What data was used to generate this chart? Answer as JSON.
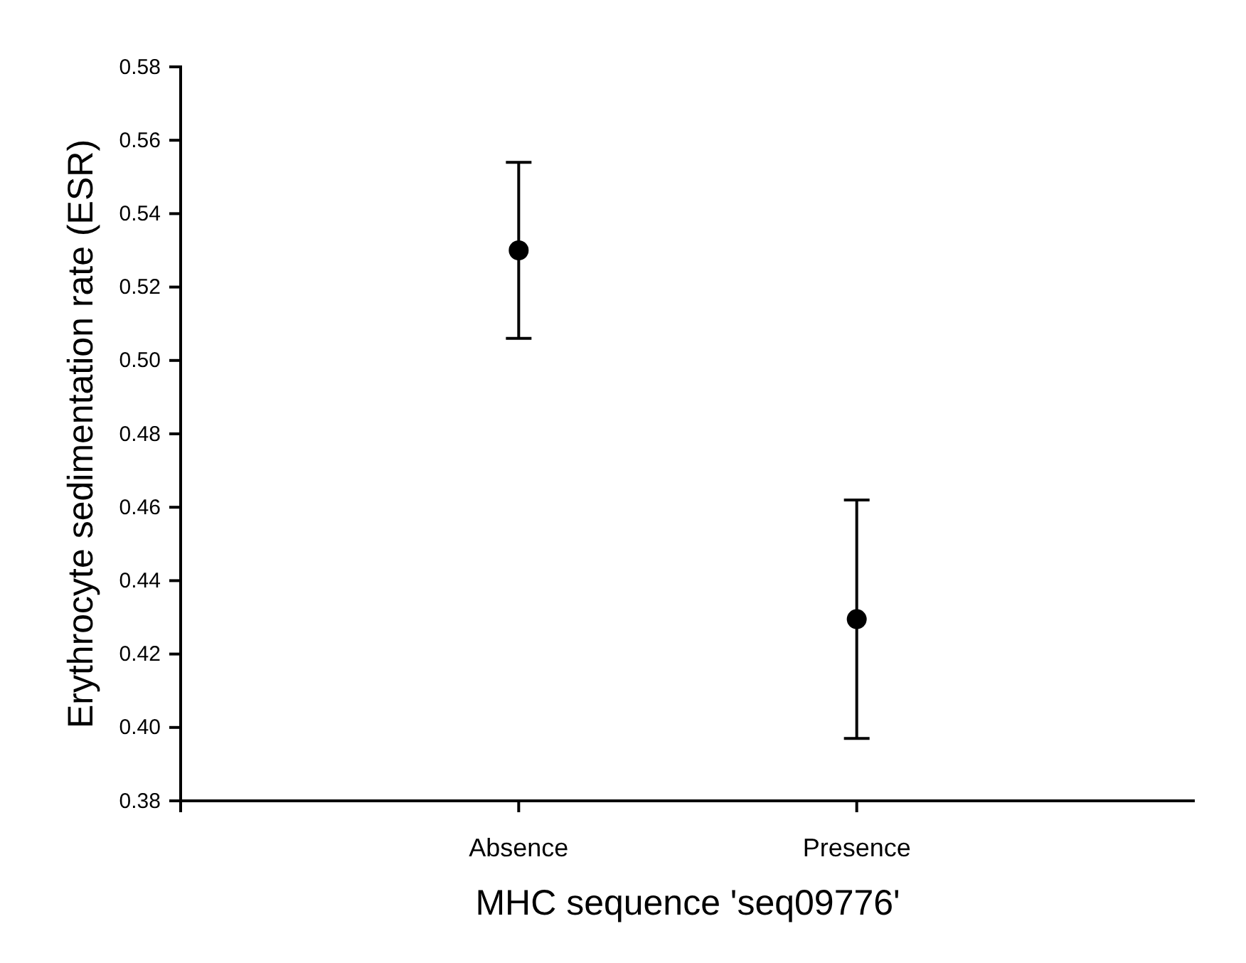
{
  "chart_data": {
    "type": "scatter",
    "xlabel": "MHC sequence 'seq09776'",
    "ylabel": "Erythrocyte sedimentation rate (ESR)",
    "categories": [
      "Absence",
      "Presence"
    ],
    "values": [
      0.53,
      0.4295
    ],
    "errors": [
      [
        0.506,
        0.554
      ],
      [
        0.397,
        0.462
      ]
    ],
    "color": "#000000",
    "marker": "circle",
    "grid": false,
    "ylim": [
      0.38,
      0.58
    ],
    "yticks": [
      0.38,
      {
        "value": 0.4,
        "label": "0.40"
      },
      0.42,
      0.44,
      0.46,
      0.48,
      {
        "value": 0.5,
        "label": "0.50"
      },
      0.52,
      0.54,
      0.56,
      0.58
    ]
  }
}
